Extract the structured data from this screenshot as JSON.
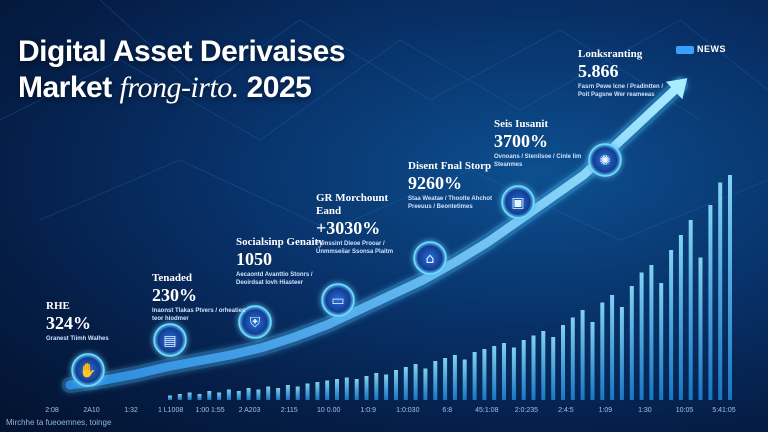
{
  "title": {
    "line1": "Digital Asset Derivaises",
    "line2_prefix": "Market ",
    "line2_italic": "frong-irto.",
    "line2_suffix": " 2025"
  },
  "logo": "NEWS",
  "footer": "Mirchhe ta fueoemnes, toinge",
  "milestones": [
    {
      "label": "RHE",
      "value": "324%",
      "sub": "Granest Tiimh Walhes",
      "icon": "hand-coin-icon"
    },
    {
      "label": "Tenaded",
      "value": "230%",
      "sub": "Inaonst Tlakas Ptvers / orheaties teor hiodmer",
      "icon": "document-icon"
    },
    {
      "label": "Socialsinp Genaity",
      "value": "1050",
      "sub": "Aecaontd Avanttio Stonrs / Deoirdsat Iovh Hiasteer",
      "icon": "shield-icon"
    },
    {
      "label": "GR Morchount Eand",
      "value": "+3030%",
      "sub": "Fsmssint Dleoe Prooar / Unmmseiiar Ssonsa Plaitm",
      "icon": "device-icon"
    },
    {
      "label": "Disent Fnal Storp",
      "value": "9260%",
      "sub": "Staa Weatae / Thoolte Ahchot Preeuus / Beontetimes",
      "icon": "house-icon"
    },
    {
      "label": "Seis Iusanit",
      "value": "3700%",
      "sub": "Ovnoans / Stenilsoe / Cinle Iim Steanmes",
      "icon": "wallet-icon"
    },
    {
      "label": "Lonksranting",
      "value": "5.866",
      "sub": "Fasrn Pewe Icne / Pradintten / Poit Pagsne Wer reameeas",
      "icon": "coin-hand-icon"
    }
  ],
  "chart_data": {
    "type": "bar",
    "title": "Digital Asset Derivaises Market frong-irto. 2025",
    "xlabel": "",
    "ylabel": "",
    "x_ticks": [
      "2:08",
      "2A10",
      "1:32",
      "1 L1008",
      "1:00 1:55",
      "2 A203",
      "2:115",
      "10 0.00",
      "1:0:9",
      "1:0:030",
      "6:8",
      "45:1:08",
      "2:0:235",
      "2:4:5",
      "1:09",
      "1:30",
      "10:05",
      "5:41:05"
    ],
    "bar_heights": [
      0.3,
      0.4,
      0.5,
      0.4,
      0.6,
      0.5,
      0.7,
      0.6,
      0.8,
      0.7,
      0.9,
      0.8,
      1.0,
      0.9,
      1.1,
      1.2,
      1.3,
      1.4,
      1.5,
      1.4,
      1.6,
      1.8,
      1.7,
      2.0,
      2.2,
      2.4,
      2.1,
      2.6,
      2.8,
      3.0,
      2.7,
      3.2,
      3.4,
      3.6,
      3.8,
      3.5,
      4.0,
      4.3,
      4.6,
      4.2,
      5.0,
      5.5,
      6.0,
      5.2,
      6.5,
      7.0,
      6.2,
      7.6,
      8.5,
      9.0,
      7.8,
      10.0,
      11.0,
      12.0,
      9.5,
      13.0,
      14.5,
      15.0
    ],
    "trend": [
      1.0,
      1.3,
      1.7,
      2.2,
      2.6,
      3.0,
      3.5,
      4.2,
      5.0,
      6.0,
      7.0,
      8.0,
      9.2,
      10.5,
      12.0,
      13.5,
      15.0,
      17.0,
      19.0,
      21.0
    ],
    "ylim": [
      0,
      22
    ],
    "grid": false
  },
  "colors": {
    "bar": "#2fb6f0",
    "bar_light": "#7fdcff",
    "trend": "#5fc7ff",
    "node": "#1e6fd6"
  }
}
